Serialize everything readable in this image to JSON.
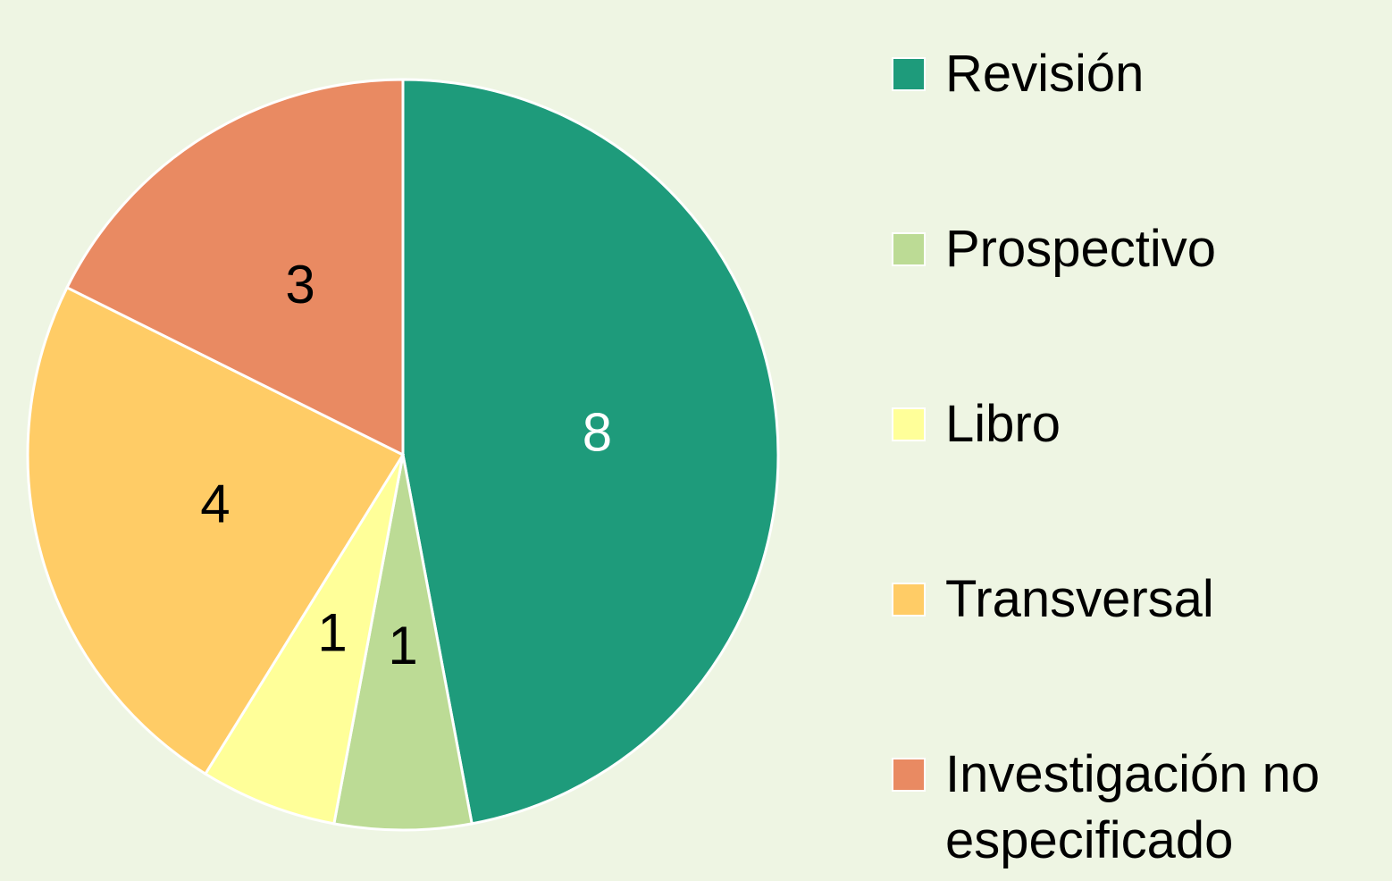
{
  "chart_data": {
    "type": "pie",
    "categories": [
      "Revisión",
      "Prospectivo",
      "Libro",
      "Transversal",
      "Investigación no especificado"
    ],
    "values": [
      8,
      1,
      1,
      4,
      3
    ],
    "colors": [
      "#1e9b7b",
      "#bcdb95",
      "#ffff99",
      "#ffcc66",
      "#e98a62"
    ],
    "legend": "right"
  }
}
